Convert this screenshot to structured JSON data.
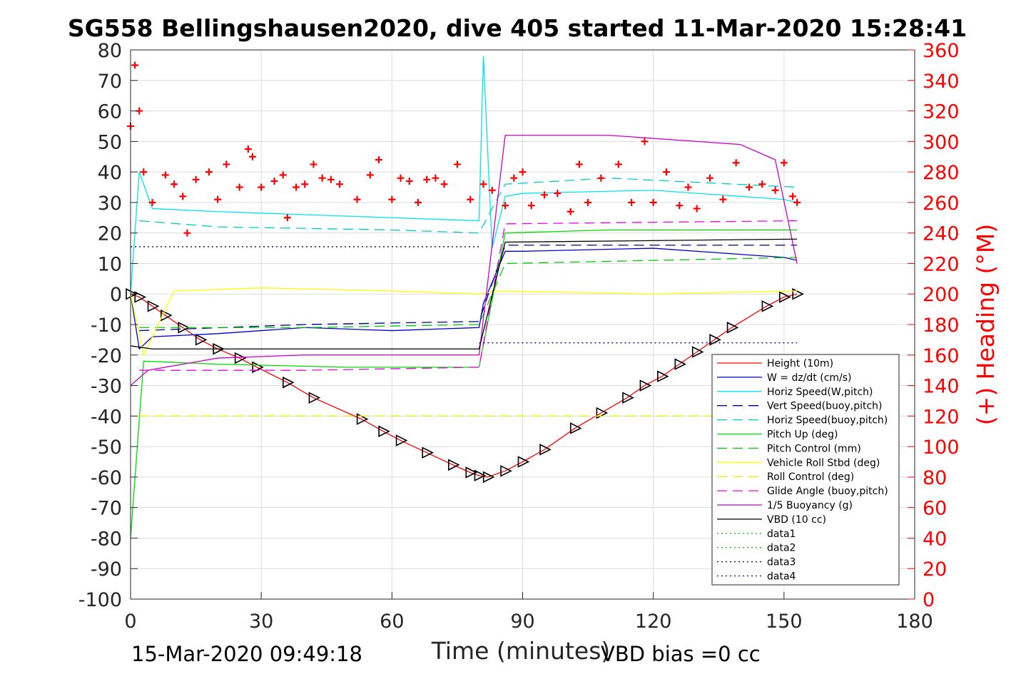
{
  "title": "SG558 Bellingshausen2020, dive 405 started 11-Mar-2020 15:28:41",
  "footer_left": "15-Mar-2020 09:49:18",
  "footer_right": "VBD bias =0 cc",
  "colors": {
    "right_axis": "#ff0000",
    "grid": "#dcdcdc",
    "axes": "#262626"
  },
  "chart_data": {
    "type": "line",
    "xlabel": "Time (minutes)",
    "ylabel": "",
    "y2label": "(+) Heading (°M)",
    "xlim": [
      0,
      180
    ],
    "ylim": [
      -100,
      80
    ],
    "y2lim": [
      0,
      360
    ],
    "grid": true,
    "legend_position": "bottom-right",
    "x_ticks": [
      0,
      30,
      60,
      90,
      120,
      150,
      180
    ],
    "y_ticks": [
      80,
      70,
      60,
      50,
      40,
      30,
      20,
      10,
      0,
      -10,
      -20,
      -30,
      -40,
      -50,
      -60,
      -70,
      -80,
      -90,
      -100
    ],
    "y2_ticks": [
      360,
      340,
      320,
      300,
      280,
      260,
      240,
      220,
      200,
      180,
      160,
      140,
      120,
      100,
      80,
      60,
      40,
      20,
      0
    ],
    "series": [
      {
        "name": "Height (10m)",
        "color": "#ff0000",
        "style": "solid",
        "marker": "triangle-right",
        "x": [
          0,
          2,
          5,
          8,
          12,
          16,
          20,
          25,
          29,
          36,
          42,
          53,
          58,
          62,
          68,
          74,
          78,
          80,
          82,
          86,
          90,
          95,
          102,
          108,
          114,
          118,
          122,
          126,
          130,
          134,
          138,
          146,
          150,
          153
        ],
        "y": [
          0,
          -1,
          -4,
          -7,
          -11,
          -15,
          -18,
          -21,
          -24,
          -29,
          -34,
          -41,
          -45,
          -48,
          -52,
          -56,
          -58.5,
          -59.5,
          -60,
          -58,
          -55,
          -51,
          -44,
          -39,
          -34,
          -30,
          -27,
          -23,
          -19,
          -15,
          -11,
          -4,
          -1,
          0
        ]
      },
      {
        "name": "W = dz/dt (cm/s)",
        "color": "#0000cc",
        "style": "solid",
        "x": [
          0,
          2,
          5,
          20,
          40,
          60,
          80,
          81,
          86,
          90,
          120,
          140,
          150,
          153
        ],
        "y": [
          0,
          -18,
          -14,
          -13,
          -11,
          -12,
          -11,
          -3,
          14,
          14,
          15,
          13,
          12,
          11
        ]
      },
      {
        "name": "Horiz Speed(W,pitch)",
        "color": "#00e5ee",
        "style": "solid",
        "x": [
          0,
          2,
          5,
          20,
          40,
          60,
          80,
          81,
          83,
          86,
          90,
          120,
          150,
          153
        ],
        "y": [
          0,
          40,
          28,
          27,
          26,
          25,
          24,
          78,
          15,
          32,
          33,
          34,
          31,
          30
        ]
      },
      {
        "name": "Vert Speed(buoy,pitch)",
        "color": "#00008b",
        "style": "dashed",
        "x": [
          2,
          40,
          80,
          86,
          153
        ],
        "y": [
          -12,
          -10,
          -9,
          16,
          16
        ]
      },
      {
        "name": "Horiz Speed(buoy,pitch)",
        "color": "#00cccc",
        "style": "dashed",
        "x": [
          2,
          20,
          60,
          80,
          86,
          110,
          153
        ],
        "y": [
          24,
          22,
          21,
          20,
          36,
          38,
          35
        ]
      },
      {
        "name": "Pitch Up (deg)",
        "color": "#00dd00",
        "style": "solid",
        "x": [
          0,
          3,
          20,
          50,
          80,
          86,
          110,
          153
        ],
        "y": [
          -80,
          -22,
          -23,
          -24,
          -24,
          20,
          21,
          21
        ]
      },
      {
        "name": "Pitch Control (mm)",
        "color": "#00cc00",
        "style": "dashed",
        "x": [
          2,
          40,
          80,
          86,
          153
        ],
        "y": [
          -11,
          -11,
          -10,
          10,
          12
        ]
      },
      {
        "name": "Vehicle Roll Stbd (deg)",
        "color": "#ffff00",
        "style": "solid",
        "x": [
          0,
          3,
          10,
          30,
          60,
          80,
          85,
          120,
          153
        ],
        "y": [
          0,
          -20,
          1,
          2,
          1,
          0,
          1,
          0,
          1
        ]
      },
      {
        "name": "Roll Control (deg)",
        "color": "#eeee00",
        "style": "dashed",
        "x": [
          2,
          153
        ],
        "y": [
          -40,
          -40
        ]
      },
      {
        "name": "Glide Angle (buoy,pitch)",
        "color": "#ee00ee",
        "style": "dashed",
        "x": [
          2,
          40,
          80,
          86,
          153
        ],
        "y": [
          -25,
          -25,
          -24,
          23,
          24
        ]
      },
      {
        "name": "1/5 Buoyancy (g)",
        "color": "#cc00cc",
        "style": "solid",
        "x": [
          0,
          4,
          20,
          40,
          80,
          86,
          110,
          140,
          148,
          153
        ],
        "y": [
          -30,
          -25,
          -21,
          -20,
          -20,
          52,
          52,
          49,
          44,
          10
        ]
      },
      {
        "name": "VBD (10 cc)",
        "color": "#000000",
        "style": "solid",
        "x": [
          0,
          5,
          80,
          86,
          153
        ],
        "y": [
          -17,
          -18,
          -18,
          17,
          18
        ]
      },
      {
        "name": "data1",
        "color": "#00cc00",
        "style": "dotted",
        "x": [],
        "y": []
      },
      {
        "name": "data2",
        "color": "#00cc00",
        "style": "dotted",
        "x": [],
        "y": []
      },
      {
        "name": "data3",
        "color": "#00008b",
        "style": "dotted",
        "x": [
          80,
          153
        ],
        "y": [
          -16,
          -16
        ]
      },
      {
        "name": "data4",
        "color": "#00008b",
        "style": "dotted",
        "x": [
          0,
          80
        ],
        "y": [
          15.5,
          15.5
        ]
      }
    ],
    "heading": {
      "name": "(+) Heading (°M)",
      "color": "#ff0000",
      "marker": "+",
      "x": [
        0,
        1,
        2,
        3,
        5,
        8,
        10,
        12,
        13,
        15,
        18,
        20,
        22,
        25,
        27,
        28,
        30,
        33,
        35,
        36,
        38,
        40,
        42,
        44,
        46,
        48,
        52,
        55,
        57,
        60,
        62,
        64,
        66,
        68,
        70,
        72,
        75,
        78,
        81,
        83,
        86,
        88,
        90,
        92,
        95,
        98,
        101,
        103,
        105,
        108,
        112,
        115,
        118,
        120,
        123,
        126,
        128,
        130,
        133,
        136,
        139,
        142,
        145,
        148,
        150,
        152,
        153
      ],
      "y": [
        310,
        350,
        320,
        280,
        260,
        278,
        272,
        264,
        240,
        275,
        280,
        262,
        285,
        270,
        295,
        290,
        270,
        274,
        278,
        250,
        270,
        272,
        285,
        276,
        275,
        272,
        262,
        278,
        288,
        262,
        276,
        274,
        260,
        275,
        276,
        272,
        285,
        262,
        272,
        268,
        258,
        276,
        280,
        258,
        265,
        266,
        254,
        285,
        260,
        276,
        285,
        260,
        300,
        260,
        280,
        258,
        270,
        256,
        276,
        262,
        286,
        270,
        272,
        268,
        286,
        264,
        260
      ]
    }
  }
}
